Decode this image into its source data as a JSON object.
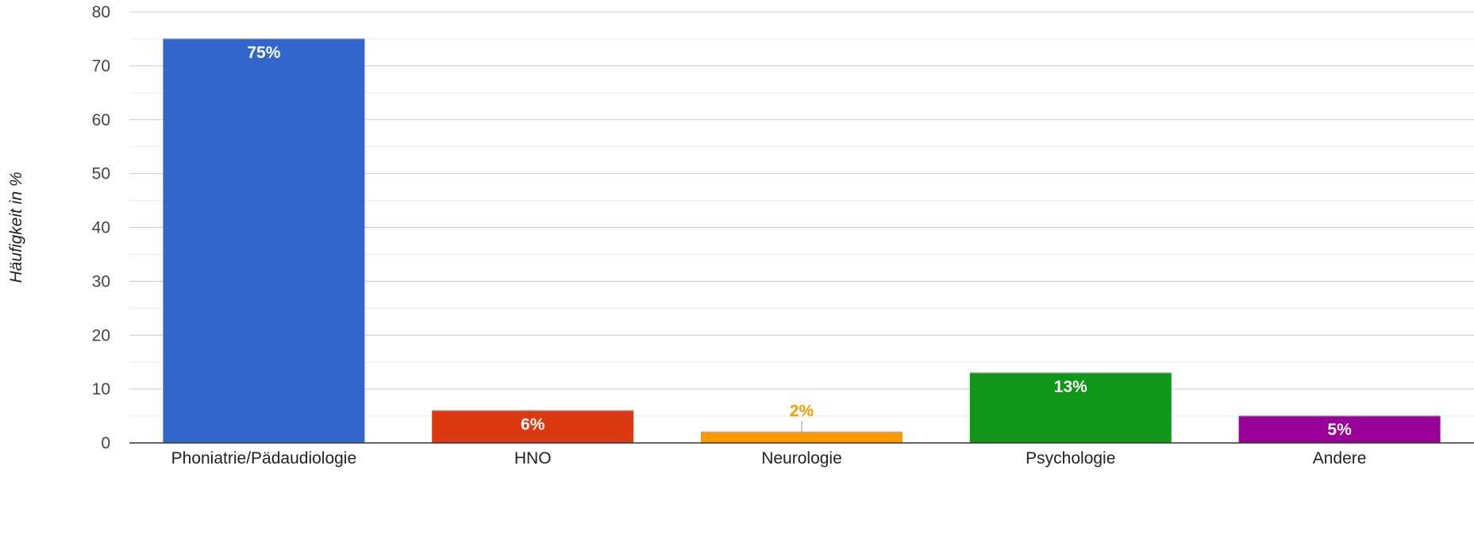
{
  "chart_data": {
    "type": "bar",
    "title": "",
    "xlabel": "",
    "ylabel": "Häufigkeit in %",
    "ylim": [
      0,
      80
    ],
    "y_ticks": [
      0,
      10,
      20,
      30,
      40,
      50,
      60,
      70,
      80
    ],
    "y_minor_gridlines": true,
    "grid": true,
    "legend": "none",
    "categories": [
      "Phoniatrie/Pädaudiologie",
      "HNO",
      "Neurologie",
      "Psychologie",
      "Andere"
    ],
    "values": [
      75,
      6,
      2,
      13,
      5
    ],
    "data_labels": [
      "75%",
      "6%",
      "2%",
      "13%",
      "5%"
    ],
    "colors": [
      "#3366cc",
      "#dc3912",
      "#ff9900",
      "#109618",
      "#990099"
    ],
    "label_colors": [
      "#ffffff",
      "#ffffff",
      "#ff9900",
      "#ffffff",
      "#ffffff"
    ],
    "label_inside": [
      true,
      true,
      false,
      true,
      true
    ]
  }
}
